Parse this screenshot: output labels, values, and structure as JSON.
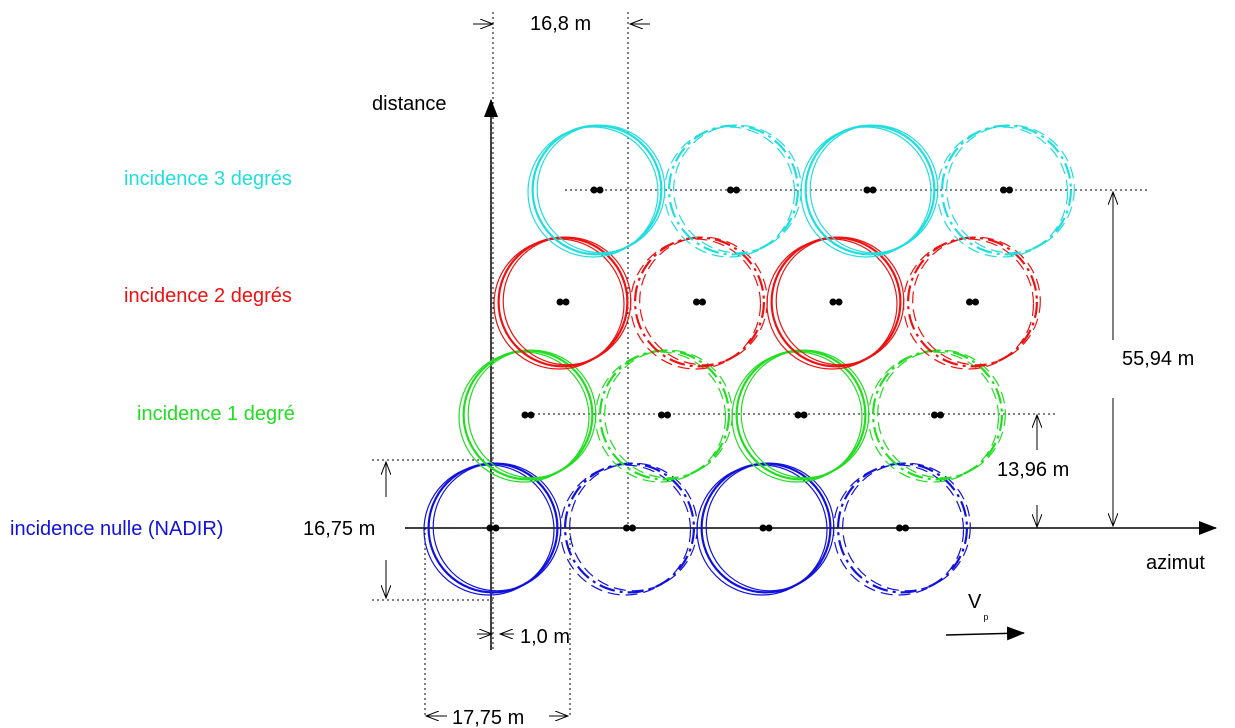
{
  "axes": {
    "vertical": "distance",
    "horizontal": "azimut",
    "velocity_base": "V",
    "velocity_sub": "p"
  },
  "rows": [
    {
      "label": "incidence nulle (NADIR)",
      "color": "#1111dd"
    },
    {
      "label": "incidence 1 degré",
      "color": "#22dd22"
    },
    {
      "label": "incidence 2 degrés",
      "color": "#ee1111"
    },
    {
      "label": "incidence 3 degrés",
      "color": "#22dddd"
    }
  ],
  "dimensions": {
    "top_spacing": "16,8 m",
    "footprint_height": "16,75 m",
    "offset": "1,0 m",
    "footprint_width": "17,75 m",
    "step_1deg": "13,96 m",
    "step_3deg": "55,94 m"
  }
}
